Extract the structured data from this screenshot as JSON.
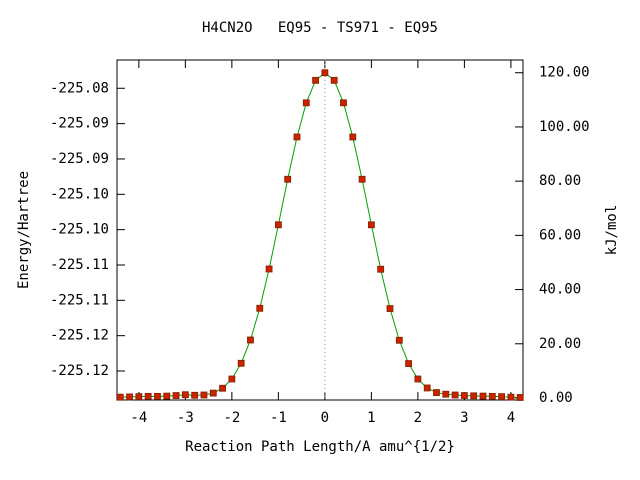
{
  "chart_data": {
    "type": "line",
    "title": "H4CN2O   EQ95 - TS971 - EQ95",
    "xlabel": "Reaction Path Length/A amu^{1/2}",
    "ylabel": "Energy/Hartree",
    "y2label": "kJ/mol",
    "x": [
      -4.4,
      -4.2,
      -4.0,
      -3.8,
      -3.6,
      -3.4,
      -3.2,
      -3.0,
      -2.8,
      -2.6,
      -2.4,
      -2.2,
      -2.0,
      -1.8,
      -1.6,
      -1.4,
      -1.2,
      -1.0,
      -0.8,
      -0.6,
      -0.4,
      -0.2,
      0,
      0.2,
      0.4,
      0.6,
      0.8,
      1.0,
      1.2,
      1.4,
      1.6,
      1.8,
      2.0,
      2.2,
      2.4,
      2.6,
      2.8,
      3.0,
      3.2,
      3.4,
      3.6,
      3.8,
      4.0,
      4.2
    ],
    "series": [
      {
        "name": "EQ95 - TS971 - EQ95",
        "color": "#00a000",
        "marker_color": "#cc2200",
        "axis": "y2",
        "values": [
          0.3,
          0.4,
          0.5,
          0.6,
          0.6,
          0.7,
          0.9,
          1.2,
          1.0,
          1.1,
          1.8,
          3.6,
          7.0,
          12.8,
          21.4,
          33.1,
          47.6,
          63.9,
          80.7,
          96.3,
          108.9,
          117.2,
          120.0,
          117.2,
          108.9,
          96.3,
          80.7,
          63.9,
          47.5,
          33.0,
          21.3,
          12.7,
          7.0,
          3.7,
          2.0,
          1.4,
          1.1,
          0.9,
          0.8,
          0.7,
          0.6,
          0.5,
          0.3,
          0.2
        ]
      }
    ],
    "xlim": [
      -4.47,
      4.26
    ],
    "xticks": [
      -4,
      -3,
      -2,
      -1,
      0,
      1,
      2,
      3,
      4
    ],
    "ylim": [
      -225.1266,
      -225.0785
    ],
    "yticks": [
      {
        "value": -225.1225,
        "label": "-225.12"
      },
      {
        "value": -225.1175,
        "label": "-225.12"
      },
      {
        "value": -225.1125,
        "label": "-225.11"
      },
      {
        "value": -225.1075,
        "label": "-225.11"
      },
      {
        "value": -225.1025,
        "label": "-225.10"
      },
      {
        "value": -225.0975,
        "label": "-225.10"
      },
      {
        "value": -225.0925,
        "label": "-225.09"
      },
      {
        "value": -225.0875,
        "label": "-225.09"
      },
      {
        "value": -225.0825,
        "label": "-225.08"
      }
    ],
    "y2lim": [
      -0.74,
      124.7
    ],
    "y2ticks": [
      {
        "value": 0,
        "label": "0.00"
      },
      {
        "value": 20,
        "label": "20.00"
      },
      {
        "value": 40,
        "label": "40.00"
      },
      {
        "value": 60,
        "label": "60.00"
      },
      {
        "value": 80,
        "label": "80.00"
      },
      {
        "value": 100,
        "label": "100.00"
      },
      {
        "value": 120,
        "label": "120.00"
      }
    ]
  }
}
